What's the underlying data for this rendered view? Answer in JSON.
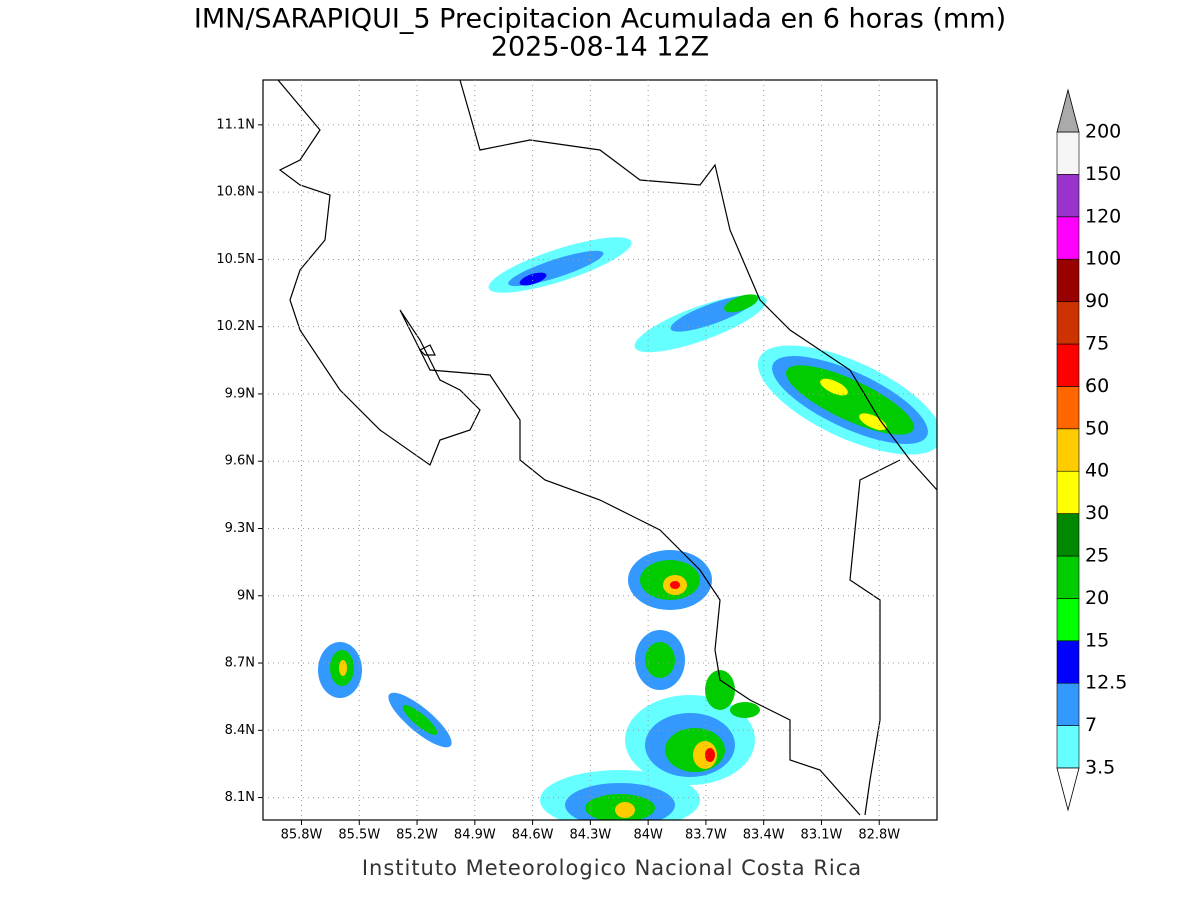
{
  "title": "IMN/SARAPIQUI_5 Precipitacion Acumulada en 6 horas (mm)",
  "subtitle": "2025-08-14 12Z",
  "map": {
    "lon_range": [
      -86.0,
      -82.5
    ],
    "lat_range": [
      8.0,
      11.3
    ],
    "xticks": [
      {
        "value": -85.8,
        "label": "85.8W"
      },
      {
        "value": -85.5,
        "label": "85.5W"
      },
      {
        "value": -85.2,
        "label": "85.2W"
      },
      {
        "value": -84.9,
        "label": "84.9W"
      },
      {
        "value": -84.6,
        "label": "84.6W"
      },
      {
        "value": -84.3,
        "label": "84.3W"
      },
      {
        "value": -84.0,
        "label": "84W"
      },
      {
        "value": -83.7,
        "label": "83.7W"
      },
      {
        "value": -83.4,
        "label": "83.4W"
      },
      {
        "value": -83.1,
        "label": "83.1W"
      },
      {
        "value": -82.8,
        "label": "82.8W"
      }
    ],
    "yticks": [
      {
        "value": 8.1,
        "label": "8.1N"
      },
      {
        "value": 8.4,
        "label": "8.4N"
      },
      {
        "value": 8.7,
        "label": "8.7N"
      },
      {
        "value": 9.0,
        "label": "9N"
      },
      {
        "value": 9.3,
        "label": "9.3N"
      },
      {
        "value": 9.6,
        "label": "9.6N"
      },
      {
        "value": 9.9,
        "label": "9.9N"
      },
      {
        "value": 10.2,
        "label": "10.2N"
      },
      {
        "value": 10.5,
        "label": "10.5N"
      },
      {
        "value": 10.8,
        "label": "10.8N"
      },
      {
        "value": 11.1,
        "label": "11.1N"
      }
    ],
    "grid": true
  },
  "colorbar": {
    "levels": [
      3.5,
      7,
      12.5,
      15,
      20,
      25,
      30,
      40,
      50,
      60,
      75,
      90,
      100,
      120,
      150,
      200
    ],
    "colors": [
      "#66ffff",
      "#3399ff",
      "#0000ff",
      "#00ff00",
      "#00cc00",
      "#008800",
      "#ffff00",
      "#ffcc00",
      "#ff6600",
      "#ff0000",
      "#cc3300",
      "#990000",
      "#ff00ff",
      "#9933cc",
      "#f5f5f5"
    ],
    "over_color": "#aaaaaa",
    "under_color": "#ffffff"
  },
  "credit": "Instituto Meteorologico Nacional Costa Rica"
}
